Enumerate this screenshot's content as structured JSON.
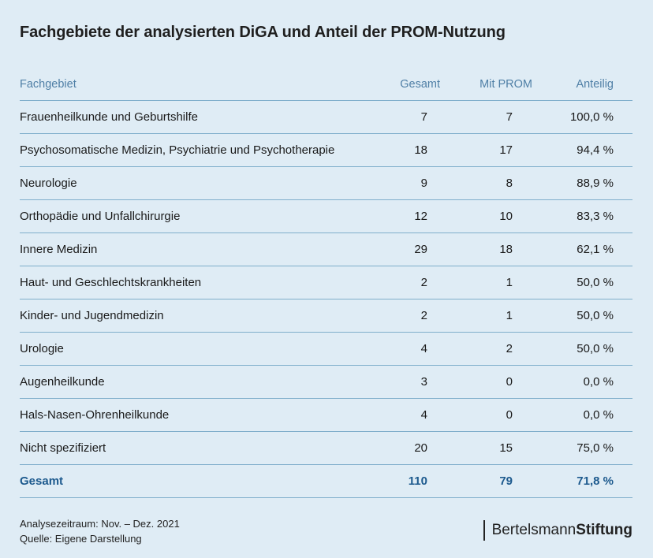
{
  "title": "Fachgebiete der analysierten DiGA und Anteil der PROM-Nutzung",
  "chart_data": {
    "type": "table",
    "columns": [
      "Fachgebiet",
      "Gesamt",
      "Mit PROM",
      "Anteilig"
    ],
    "rows": [
      [
        "Frauenheilkunde und Geburtshilfe",
        "7",
        "7",
        "100,0 %"
      ],
      [
        "Psychosomatische Medizin, Psychiatrie und Psychotherapie",
        "18",
        "17",
        "94,4 %"
      ],
      [
        "Neurologie",
        "9",
        "8",
        "88,9 %"
      ],
      [
        "Orthopädie und Unfallchirurgie",
        "12",
        "10",
        "83,3 %"
      ],
      [
        "Innere Medizin",
        "29",
        "18",
        "62,1 %"
      ],
      [
        "Haut- und Geschlechtskrankheiten",
        "2",
        "1",
        "50,0 %"
      ],
      [
        "Kinder- und Jugendmedizin",
        "2",
        "1",
        "50,0 %"
      ],
      [
        "Urologie",
        "4",
        "2",
        "50,0 %"
      ],
      [
        "Augenheilkunde",
        "3",
        "0",
        "0,0 %"
      ],
      [
        "Hals-Nasen-Ohrenheilkunde",
        "4",
        "0",
        "0,0 %"
      ],
      [
        "Nicht spezifiziert",
        "20",
        "15",
        "75,0 %"
      ]
    ],
    "total": [
      "Gesamt",
      "110",
      "79",
      "71,8 %"
    ]
  },
  "footer": {
    "line1": "Analysezeitraum: Nov. – Dez. 2021",
    "line2": "Quelle: Eigene Darstellung"
  },
  "logo": {
    "part1": "Bertelsmann",
    "part2": "Stiftung"
  },
  "colors": {
    "background": "#dfecf5",
    "header_text": "#4f7fa6",
    "rule": "#7faecb",
    "total_text": "#1d5a8e"
  }
}
